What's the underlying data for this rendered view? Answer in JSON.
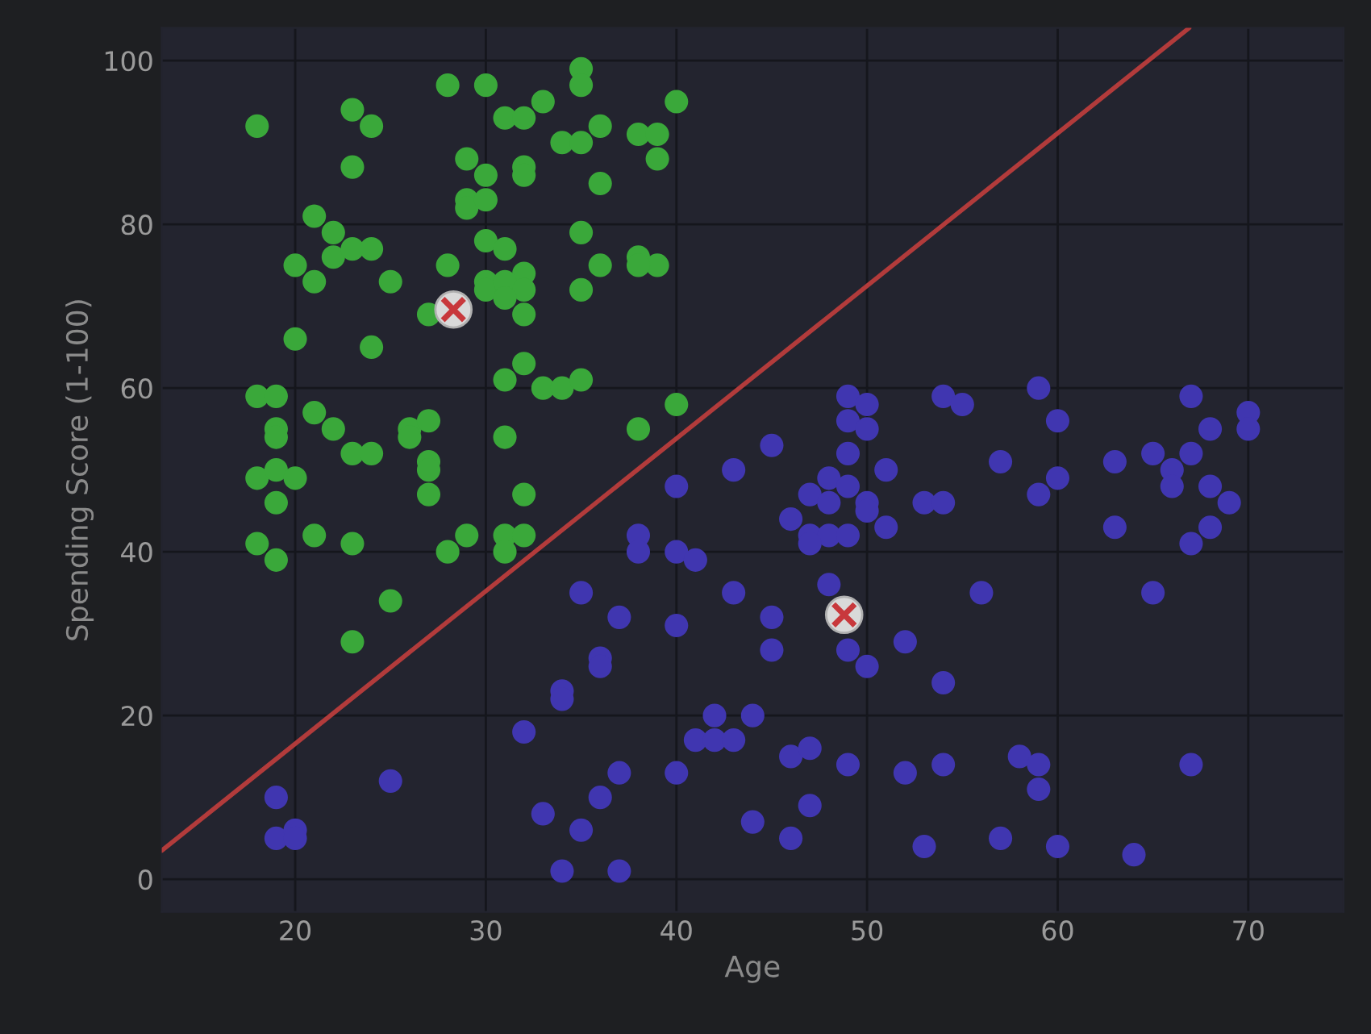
{
  "chart_data": {
    "type": "scatter",
    "xlabel": "Age",
    "ylabel": "Spending Score (1-100)",
    "xlim": [
      13,
      75
    ],
    "ylim": [
      -4,
      104
    ],
    "xticks": [
      20,
      30,
      40,
      50,
      60,
      70
    ],
    "yticks": [
      0,
      20,
      40,
      60,
      80,
      100
    ],
    "grid": true,
    "legend": false,
    "marker": "circle",
    "series": [
      {
        "color": "#3aa83a",
        "x": [
          18,
          21,
          20,
          21,
          22,
          23,
          24,
          23,
          22,
          23,
          24,
          25,
          20,
          24,
          18,
          19,
          19,
          19,
          21,
          22,
          23,
          24,
          26,
          26,
          27,
          27,
          27,
          27,
          18,
          19,
          20,
          19,
          18,
          19,
          21,
          23,
          25,
          23,
          28,
          30,
          29,
          30,
          29,
          29,
          30,
          28,
          30,
          31,
          32,
          30,
          30,
          31,
          32,
          31,
          32,
          27,
          31,
          32,
          33,
          32,
          32,
          34,
          35,
          35,
          35,
          36,
          36,
          35,
          36,
          35,
          38,
          39,
          39,
          40,
          38,
          39,
          38,
          31,
          32,
          33,
          34,
          35,
          31,
          32,
          31,
          32,
          31,
          29,
          28,
          38,
          40
        ],
        "values": [
          92,
          81,
          75,
          73,
          79,
          94,
          92,
          87,
          76,
          77,
          77,
          73,
          66,
          65,
          59,
          59,
          55,
          54,
          57,
          55,
          52,
          52,
          55,
          54,
          56,
          51,
          50,
          47,
          49,
          50,
          49,
          46,
          41,
          39,
          42,
          41,
          34,
          29,
          97,
          97,
          88,
          86,
          83,
          82,
          83,
          75,
          78,
          77,
          74,
          73,
          72,
          73,
          72,
          71,
          69,
          69,
          93,
          93,
          95,
          87,
          86,
          90,
          90,
          99,
          97,
          92,
          85,
          79,
          75,
          72,
          91,
          91,
          88,
          95,
          76,
          75,
          75,
          61,
          63,
          60,
          60,
          61,
          54,
          47,
          42,
          42,
          40,
          42,
          40,
          55,
          58
        ]
      },
      {
        "color": "#4036b0",
        "x": [
          49,
          50,
          49,
          50,
          49,
          45,
          43,
          40,
          54,
          55,
          59,
          60,
          67,
          68,
          70,
          70,
          51,
          48,
          49,
          47,
          48,
          50,
          50,
          46,
          47,
          48,
          49,
          47,
          51,
          53,
          54,
          57,
          59,
          60,
          63,
          65,
          66,
          66,
          67,
          68,
          69,
          63,
          67,
          68,
          40,
          41,
          43,
          40,
          45,
          45,
          48,
          49,
          50,
          52,
          54,
          56,
          65,
          42,
          44,
          41,
          42,
          43,
          46,
          47,
          49,
          52,
          54,
          58,
          59,
          59,
          67,
          40,
          44,
          47,
          46,
          53,
          57,
          60,
          64,
          38,
          38,
          35,
          37,
          36,
          36,
          34,
          34,
          32,
          37,
          36,
          33,
          35,
          34,
          37,
          19,
          19,
          20,
          20,
          25
        ],
        "values": [
          59,
          58,
          56,
          55,
          52,
          53,
          50,
          48,
          59,
          58,
          60,
          56,
          59,
          55,
          57,
          55,
          50,
          49,
          48,
          47,
          46,
          46,
          45,
          44,
          42,
          42,
          42,
          41,
          43,
          46,
          46,
          51,
          47,
          49,
          51,
          52,
          50,
          48,
          52,
          48,
          46,
          43,
          41,
          43,
          40,
          39,
          35,
          31,
          32,
          28,
          36,
          28,
          26,
          29,
          24,
          35,
          35,
          20,
          20,
          17,
          17,
          17,
          15,
          16,
          14,
          13,
          14,
          15,
          14,
          11,
          14,
          13,
          7,
          9,
          5,
          4,
          5,
          4,
          3,
          42,
          40,
          35,
          32,
          27,
          26,
          23,
          22,
          18,
          13,
          10,
          8,
          6,
          1,
          1,
          10,
          5,
          6,
          5,
          12
        ]
      },
      {
        "type": "line",
        "color": "#b23b3b",
        "marker": "none",
        "x": [
          13,
          66.9
        ],
        "values": [
          3.5,
          104
        ]
      },
      {
        "color": "#c8383c",
        "marker": "cross",
        "x": [
          28.3,
          48.8
        ],
        "values": [
          69.6,
          32.3
        ]
      }
    ]
  }
}
